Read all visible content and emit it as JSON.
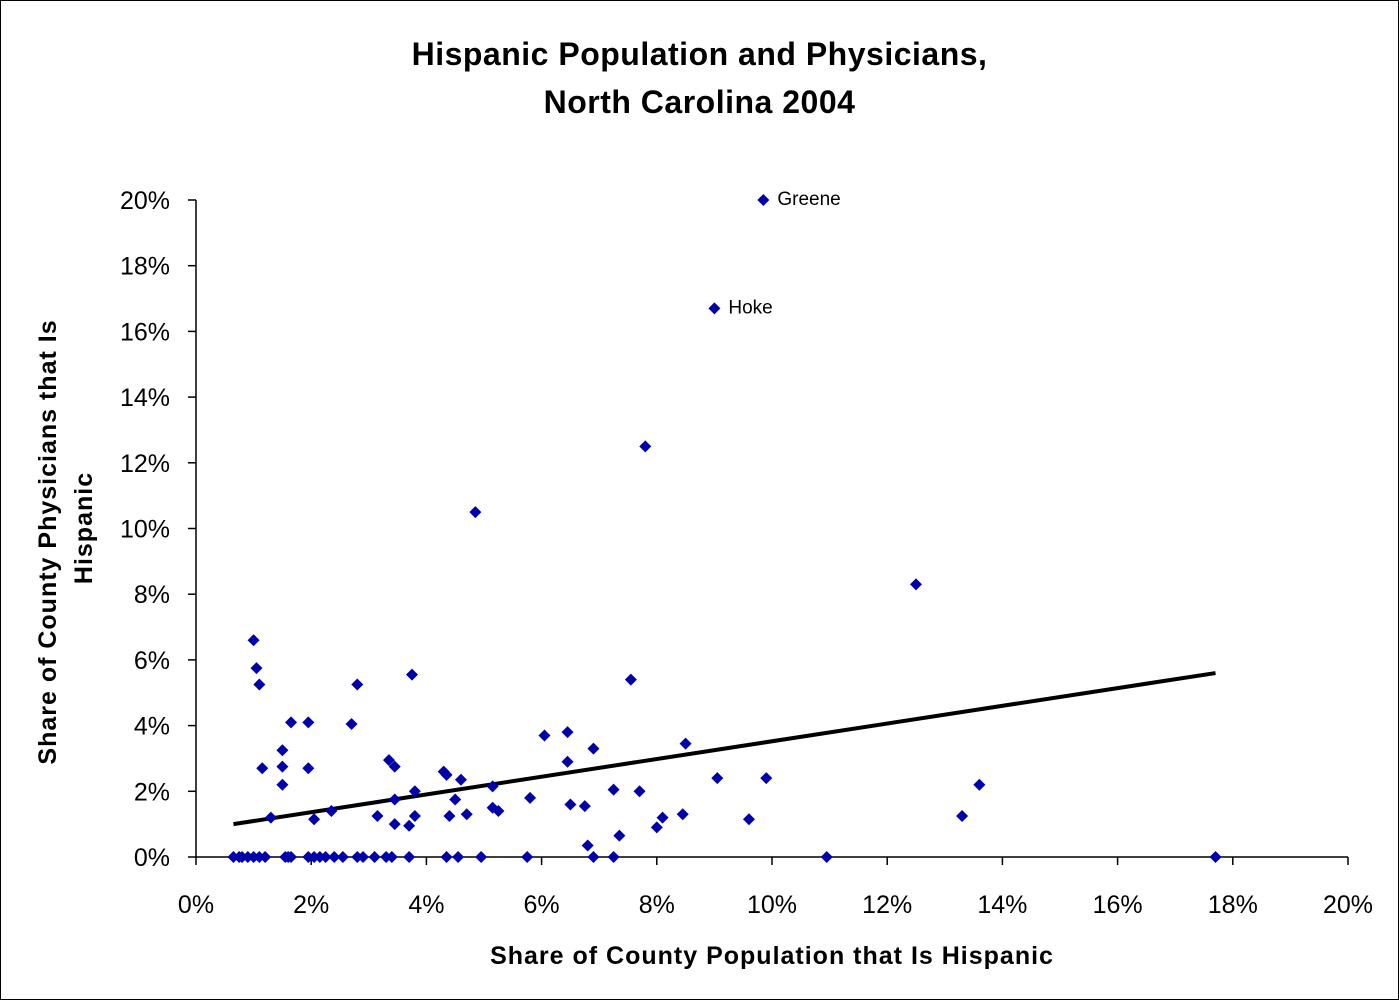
{
  "chart_data": {
    "type": "scatter",
    "title_line1": "Hispanic Population and Physicians,",
    "title_line2": "North Carolina 2004",
    "xlabel": "Share of County Population that Is Hispanic",
    "ylabel_line1": "Share of County Physicians that Is",
    "ylabel_line2": "Hispanic",
    "xlim": [
      0,
      20
    ],
    "ylim": [
      0,
      20
    ],
    "x_ticks": [
      "0%",
      "2%",
      "4%",
      "6%",
      "8%",
      "10%",
      "12%",
      "14%",
      "16%",
      "18%",
      "20%"
    ],
    "y_ticks": [
      "0%",
      "2%",
      "4%",
      "6%",
      "8%",
      "10%",
      "12%",
      "14%",
      "16%",
      "18%",
      "20%"
    ],
    "grid": false,
    "marker_color": "#0000AA",
    "trendline": {
      "color": "#000000",
      "from": [
        0.65,
        1.0
      ],
      "to": [
        17.7,
        5.6
      ]
    },
    "annotations": [
      {
        "text": "Greene",
        "x": 9.85,
        "y": 20.0
      },
      {
        "text": "Hoke",
        "x": 9.0,
        "y": 16.7
      }
    ],
    "points": [
      [
        0.65,
        0
      ],
      [
        0.75,
        0
      ],
      [
        0.8,
        0
      ],
      [
        0.9,
        0
      ],
      [
        1.0,
        0
      ],
      [
        1.1,
        0
      ],
      [
        1.2,
        0
      ],
      [
        1.55,
        0
      ],
      [
        1.6,
        0
      ],
      [
        1.65,
        0
      ],
      [
        1.95,
        0
      ],
      [
        2.05,
        0
      ],
      [
        2.15,
        0
      ],
      [
        2.25,
        0
      ],
      [
        2.4,
        0
      ],
      [
        2.55,
        0
      ],
      [
        2.8,
        0
      ],
      [
        2.9,
        0
      ],
      [
        3.1,
        0
      ],
      [
        3.3,
        0
      ],
      [
        3.4,
        0
      ],
      [
        3.7,
        0
      ],
      [
        4.35,
        0
      ],
      [
        4.55,
        0
      ],
      [
        4.95,
        0
      ],
      [
        5.75,
        0
      ],
      [
        6.9,
        0
      ],
      [
        7.25,
        0
      ],
      [
        10.95,
        0
      ],
      [
        17.7,
        0
      ],
      [
        1.0,
        6.6
      ],
      [
        1.05,
        5.75
      ],
      [
        1.1,
        5.25
      ],
      [
        1.15,
        2.7
      ],
      [
        1.3,
        1.2
      ],
      [
        1.5,
        3.25
      ],
      [
        1.5,
        2.75
      ],
      [
        1.5,
        2.2
      ],
      [
        1.65,
        4.1
      ],
      [
        1.95,
        4.1
      ],
      [
        1.95,
        2.7
      ],
      [
        2.05,
        1.15
      ],
      [
        2.35,
        1.4
      ],
      [
        2.7,
        4.05
      ],
      [
        2.8,
        5.25
      ],
      [
        3.15,
        1.25
      ],
      [
        3.35,
        2.95
      ],
      [
        3.45,
        2.75
      ],
      [
        3.45,
        1.75
      ],
      [
        3.45,
        1.0
      ],
      [
        3.7,
        0.95
      ],
      [
        3.75,
        5.55
      ],
      [
        3.8,
        1.25
      ],
      [
        3.8,
        2.0
      ],
      [
        4.3,
        2.6
      ],
      [
        4.35,
        2.5
      ],
      [
        4.4,
        1.25
      ],
      [
        4.5,
        1.75
      ],
      [
        4.6,
        2.35
      ],
      [
        4.7,
        1.3
      ],
      [
        4.85,
        10.5
      ],
      [
        5.15,
        2.15
      ],
      [
        5.15,
        1.5
      ],
      [
        5.25,
        1.4
      ],
      [
        5.8,
        1.8
      ],
      [
        6.05,
        3.7
      ],
      [
        6.45,
        3.8
      ],
      [
        6.45,
        2.9
      ],
      [
        6.5,
        1.6
      ],
      [
        6.75,
        1.55
      ],
      [
        6.8,
        0.35
      ],
      [
        6.9,
        3.3
      ],
      [
        7.25,
        2.05
      ],
      [
        7.35,
        0.65
      ],
      [
        7.55,
        5.4
      ],
      [
        7.7,
        2.0
      ],
      [
        7.8,
        12.5
      ],
      [
        8.0,
        0.9
      ],
      [
        8.1,
        1.2
      ],
      [
        8.45,
        1.3
      ],
      [
        8.5,
        3.45
      ],
      [
        9.0,
        16.7
      ],
      [
        9.05,
        2.4
      ],
      [
        9.6,
        1.15
      ],
      [
        9.85,
        20.0
      ],
      [
        9.9,
        2.4
      ],
      [
        12.5,
        8.3
      ],
      [
        13.3,
        1.25
      ],
      [
        13.6,
        2.2
      ]
    ]
  }
}
